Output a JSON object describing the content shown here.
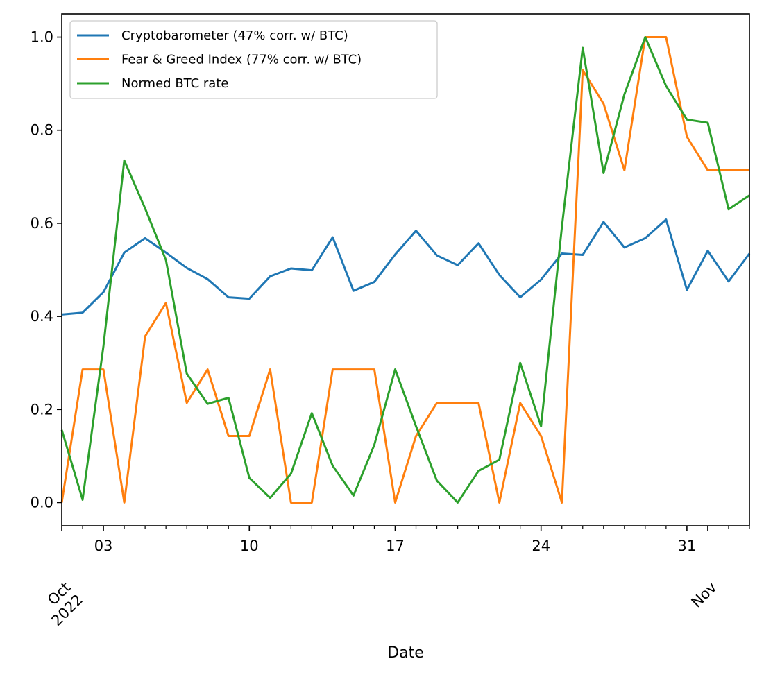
{
  "chart_data": {
    "type": "line",
    "xlabel": "Date",
    "ylabel": "",
    "title": "",
    "xlim": [
      "2022-10-01",
      "2022-11-03"
    ],
    "ylim": [
      -0.05,
      1.05
    ],
    "grid": false,
    "legend_position": "top-left",
    "x_tick_labels": [
      {
        "date": "2022-10-03",
        "label": "03"
      },
      {
        "date": "2022-10-10",
        "label": "10"
      },
      {
        "date": "2022-10-17",
        "label": "17"
      },
      {
        "date": "2022-10-24",
        "label": "24"
      },
      {
        "date": "2022-10-31",
        "label": "31"
      }
    ],
    "x_secondary_labels": [
      {
        "date": "2022-10-01",
        "lines": [
          "Oct",
          "2022"
        ]
      },
      {
        "date": "2022-11-01",
        "lines": [
          "Nov"
        ]
      }
    ],
    "y_ticks": [
      0.0,
      0.2,
      0.4,
      0.6,
      0.8,
      1.0
    ],
    "y_tick_labels": [
      "0.0",
      "0.2",
      "0.4",
      "0.6",
      "0.8",
      "1.0"
    ],
    "x": [
      "2022-10-01",
      "2022-10-02",
      "2022-10-03",
      "2022-10-04",
      "2022-10-05",
      "2022-10-06",
      "2022-10-07",
      "2022-10-08",
      "2022-10-09",
      "2022-10-10",
      "2022-10-11",
      "2022-10-12",
      "2022-10-13",
      "2022-10-14",
      "2022-10-15",
      "2022-10-16",
      "2022-10-17",
      "2022-10-18",
      "2022-10-19",
      "2022-10-20",
      "2022-10-21",
      "2022-10-22",
      "2022-10-23",
      "2022-10-24",
      "2022-10-25",
      "2022-10-26",
      "2022-10-27",
      "2022-10-28",
      "2022-10-29",
      "2022-10-30",
      "2022-10-31",
      "2022-11-01",
      "2022-11-02",
      "2022-11-03"
    ],
    "series": [
      {
        "name": "Cryptobarometer (47% corr. w/ BTC)",
        "color": "#1f77b4",
        "values": [
          0.404,
          0.408,
          0.452,
          0.537,
          0.568,
          0.537,
          0.504,
          0.48,
          0.441,
          0.438,
          0.486,
          0.503,
          0.499,
          0.57,
          0.455,
          0.474,
          0.533,
          0.584,
          0.531,
          0.51,
          0.557,
          0.489,
          0.441,
          0.479,
          0.535,
          0.532,
          0.603,
          0.548,
          0.568,
          0.608,
          0.457,
          0.541,
          0.475,
          0.535
        ]
      },
      {
        "name": "Fear & Greed Index (77% corr. w/ BTC)",
        "color": "#ff7f0e",
        "values": [
          0.0,
          0.286,
          0.286,
          0.0,
          0.357,
          0.429,
          0.214,
          0.286,
          0.143,
          0.143,
          0.286,
          0.0,
          0.0,
          0.286,
          0.286,
          0.286,
          0.0,
          0.143,
          0.214,
          0.214,
          0.214,
          0.0,
          0.214,
          0.143,
          0.0,
          0.929,
          0.857,
          0.714,
          1.0,
          1.0,
          0.786,
          0.714,
          0.714,
          0.714
        ]
      },
      {
        "name": "Normed BTC rate",
        "color": "#2ca02c",
        "values": [
          0.156,
          0.006,
          0.336,
          0.735,
          0.632,
          0.521,
          0.277,
          0.212,
          0.225,
          0.053,
          0.01,
          0.062,
          0.192,
          0.079,
          0.015,
          0.124,
          0.286,
          0.164,
          0.047,
          0.0,
          0.068,
          0.092,
          0.3,
          0.164,
          0.592,
          0.977,
          0.708,
          0.877,
          1.0,
          0.895,
          0.823,
          0.816,
          0.63,
          0.66
        ]
      }
    ]
  }
}
